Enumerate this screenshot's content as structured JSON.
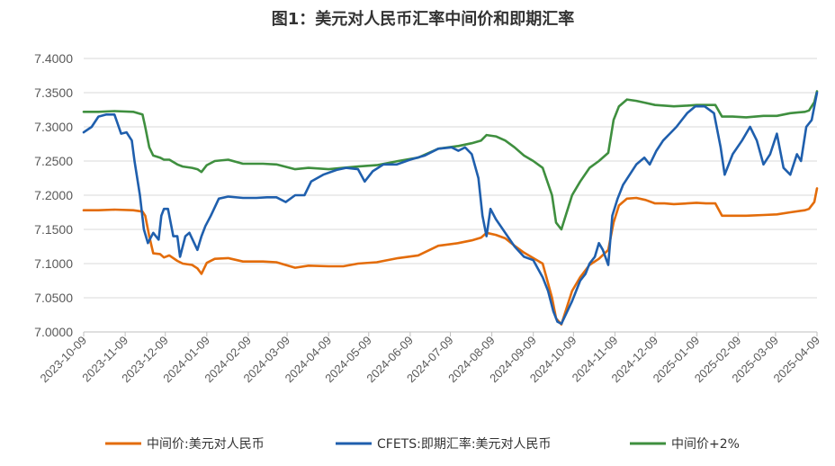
{
  "chart_data": {
    "type": "line",
    "title": "图1：美元对人民币汇率中间价和即期汇率",
    "xlabel": "",
    "ylabel": "",
    "ylim": [
      7.0,
      7.4
    ],
    "yticks": [
      "7.0000",
      "7.0500",
      "7.1000",
      "7.1500",
      "7.2000",
      "7.2500",
      "7.3000",
      "7.3500",
      "7.4000"
    ],
    "x_ticks": [
      "2023-10-09",
      "2023-11-09",
      "2023-12-09",
      "2024-01-09",
      "2024-02-09",
      "2024-03-09",
      "2024-04-09",
      "2024-05-09",
      "2024-06-09",
      "2024-07-09",
      "2024-08-09",
      "2024-09-09",
      "2024-10-09",
      "2024-11-09",
      "2024-12-09",
      "2025-01-09",
      "2025-02-09",
      "2025-03-09",
      "2025-04-09"
    ],
    "grid": "horizontal",
    "legend_position": "bottom",
    "series": [
      {
        "name": "中间价:美元对人民币",
        "color": "#e36c0a",
        "points": [
          [
            "2023-10-09",
            7.178
          ],
          [
            "2023-10-20",
            7.178
          ],
          [
            "2023-11-01",
            7.179
          ],
          [
            "2023-11-15",
            7.178
          ],
          [
            "2023-11-22",
            7.176
          ],
          [
            "2023-11-24",
            7.17
          ],
          [
            "2023-11-27",
            7.14
          ],
          [
            "2023-11-30",
            7.115
          ],
          [
            "2023-12-05",
            7.114
          ],
          [
            "2023-12-08",
            7.109
          ],
          [
            "2023-12-12",
            7.112
          ],
          [
            "2023-12-18",
            7.104
          ],
          [
            "2023-12-22",
            7.1
          ],
          [
            "2023-12-29",
            7.098
          ],
          [
            "2024-01-02",
            7.093
          ],
          [
            "2024-01-05",
            7.085
          ],
          [
            "2024-01-09",
            7.101
          ],
          [
            "2024-01-15",
            7.107
          ],
          [
            "2024-01-25",
            7.108
          ],
          [
            "2024-02-05",
            7.103
          ],
          [
            "2024-02-20",
            7.103
          ],
          [
            "2024-03-01",
            7.102
          ],
          [
            "2024-03-15",
            7.094
          ],
          [
            "2024-03-25",
            7.097
          ],
          [
            "2024-04-09",
            7.096
          ],
          [
            "2024-04-20",
            7.096
          ],
          [
            "2024-05-01",
            7.1
          ],
          [
            "2024-05-15",
            7.102
          ],
          [
            "2024-05-31",
            7.108
          ],
          [
            "2024-06-15",
            7.112
          ],
          [
            "2024-06-30",
            7.126
          ],
          [
            "2024-07-15",
            7.13
          ],
          [
            "2024-07-25",
            7.134
          ],
          [
            "2024-08-01",
            7.138
          ],
          [
            "2024-08-05",
            7.145
          ],
          [
            "2024-08-12",
            7.142
          ],
          [
            "2024-08-19",
            7.137
          ],
          [
            "2024-08-26",
            7.126
          ],
          [
            "2024-09-02",
            7.116
          ],
          [
            "2024-09-09",
            7.108
          ],
          [
            "2024-09-16",
            7.1
          ],
          [
            "2024-09-23",
            7.05
          ],
          [
            "2024-09-26",
            7.02
          ],
          [
            "2024-09-30",
            7.011
          ],
          [
            "2024-10-08",
            7.06
          ],
          [
            "2024-10-14",
            7.08
          ],
          [
            "2024-10-21",
            7.098
          ],
          [
            "2024-10-28",
            7.107
          ],
          [
            "2024-11-04",
            7.12
          ],
          [
            "2024-11-08",
            7.16
          ],
          [
            "2024-11-12",
            7.185
          ],
          [
            "2024-11-18",
            7.195
          ],
          [
            "2024-11-25",
            7.196
          ],
          [
            "2024-12-02",
            7.193
          ],
          [
            "2024-12-09",
            7.188
          ],
          [
            "2024-12-16",
            7.188
          ],
          [
            "2024-12-23",
            7.187
          ],
          [
            "2025-01-02",
            7.188
          ],
          [
            "2025-01-09",
            7.189
          ],
          [
            "2025-01-16",
            7.188
          ],
          [
            "2025-01-23",
            7.188
          ],
          [
            "2025-01-28",
            7.17
          ],
          [
            "2025-02-05",
            7.17
          ],
          [
            "2025-02-15",
            7.17
          ],
          [
            "2025-02-28",
            7.171
          ],
          [
            "2025-03-10",
            7.172
          ],
          [
            "2025-03-20",
            7.175
          ],
          [
            "2025-03-31",
            7.178
          ],
          [
            "2025-04-03",
            7.18
          ],
          [
            "2025-04-07",
            7.19
          ],
          [
            "2025-04-09",
            7.21
          ]
        ]
      },
      {
        "name": "CFETS:即期汇率:美元对人民币",
        "color": "#1f5fad",
        "points": [
          [
            "2023-10-09",
            7.292
          ],
          [
            "2023-10-15",
            7.3
          ],
          [
            "2023-10-20",
            7.315
          ],
          [
            "2023-10-26",
            7.318
          ],
          [
            "2023-11-01",
            7.318
          ],
          [
            "2023-11-06",
            7.29
          ],
          [
            "2023-11-10",
            7.292
          ],
          [
            "2023-11-14",
            7.28
          ],
          [
            "2023-11-16",
            7.25
          ],
          [
            "2023-11-20",
            7.2
          ],
          [
            "2023-11-23",
            7.15
          ],
          [
            "2023-11-26",
            7.13
          ],
          [
            "2023-11-30",
            7.145
          ],
          [
            "2023-12-04",
            7.135
          ],
          [
            "2023-12-06",
            7.17
          ],
          [
            "2023-12-08",
            7.18
          ],
          [
            "2023-12-11",
            7.18
          ],
          [
            "2023-12-15",
            7.14
          ],
          [
            "2023-12-18",
            7.14
          ],
          [
            "2023-12-20",
            7.11
          ],
          [
            "2023-12-24",
            7.14
          ],
          [
            "2023-12-27",
            7.145
          ],
          [
            "2024-01-02",
            7.12
          ],
          [
            "2024-01-05",
            7.14
          ],
          [
            "2024-01-08",
            7.155
          ],
          [
            "2024-01-12",
            7.17
          ],
          [
            "2024-01-18",
            7.195
          ],
          [
            "2024-01-25",
            7.198
          ],
          [
            "2024-02-05",
            7.196
          ],
          [
            "2024-02-15",
            7.196
          ],
          [
            "2024-02-23",
            7.197
          ],
          [
            "2024-03-01",
            7.197
          ],
          [
            "2024-03-08",
            7.19
          ],
          [
            "2024-03-15",
            7.2
          ],
          [
            "2024-03-22",
            7.2
          ],
          [
            "2024-03-27",
            7.22
          ],
          [
            "2024-04-05",
            7.23
          ],
          [
            "2024-04-15",
            7.237
          ],
          [
            "2024-04-22",
            7.24
          ],
          [
            "2024-05-01",
            7.238
          ],
          [
            "2024-05-06",
            7.22
          ],
          [
            "2024-05-12",
            7.235
          ],
          [
            "2024-05-20",
            7.245
          ],
          [
            "2024-05-30",
            7.245
          ],
          [
            "2024-06-09",
            7.252
          ],
          [
            "2024-06-20",
            7.258
          ],
          [
            "2024-06-30",
            7.268
          ],
          [
            "2024-07-10",
            7.27
          ],
          [
            "2024-07-15",
            7.265
          ],
          [
            "2024-07-20",
            7.27
          ],
          [
            "2024-07-25",
            7.26
          ],
          [
            "2024-07-30",
            7.225
          ],
          [
            "2024-08-02",
            7.17
          ],
          [
            "2024-08-05",
            7.14
          ],
          [
            "2024-08-08",
            7.18
          ],
          [
            "2024-08-12",
            7.165
          ],
          [
            "2024-08-19",
            7.145
          ],
          [
            "2024-08-26",
            7.125
          ],
          [
            "2024-09-02",
            7.11
          ],
          [
            "2024-09-09",
            7.105
          ],
          [
            "2024-09-16",
            7.08
          ],
          [
            "2024-09-20",
            7.06
          ],
          [
            "2024-09-24",
            7.03
          ],
          [
            "2024-09-27",
            7.015
          ],
          [
            "2024-09-30",
            7.012
          ],
          [
            "2024-10-08",
            7.045
          ],
          [
            "2024-10-14",
            7.075
          ],
          [
            "2024-10-18",
            7.085
          ],
          [
            "2024-10-21",
            7.1
          ],
          [
            "2024-10-25",
            7.11
          ],
          [
            "2024-10-28",
            7.13
          ],
          [
            "2024-10-31",
            7.12
          ],
          [
            "2024-11-04",
            7.098
          ],
          [
            "2024-11-07",
            7.17
          ],
          [
            "2024-11-11",
            7.195
          ],
          [
            "2024-11-15",
            7.215
          ],
          [
            "2024-11-20",
            7.23
          ],
          [
            "2024-11-25",
            7.245
          ],
          [
            "2024-12-01",
            7.255
          ],
          [
            "2024-12-05",
            7.245
          ],
          [
            "2024-12-10",
            7.265
          ],
          [
            "2024-12-15",
            7.28
          ],
          [
            "2024-12-20",
            7.29
          ],
          [
            "2024-12-25",
            7.3
          ],
          [
            "2025-01-02",
            7.32
          ],
          [
            "2025-01-08",
            7.33
          ],
          [
            "2025-01-15",
            7.33
          ],
          [
            "2025-01-22",
            7.32
          ],
          [
            "2025-01-27",
            7.27
          ],
          [
            "2025-01-30",
            7.23
          ],
          [
            "2025-02-05",
            7.26
          ],
          [
            "2025-02-12",
            7.28
          ],
          [
            "2025-02-18",
            7.3
          ],
          [
            "2025-02-23",
            7.28
          ],
          [
            "2025-02-28",
            7.245
          ],
          [
            "2025-03-05",
            7.26
          ],
          [
            "2025-03-10",
            7.29
          ],
          [
            "2025-03-15",
            7.24
          ],
          [
            "2025-03-20",
            7.23
          ],
          [
            "2025-03-25",
            7.26
          ],
          [
            "2025-03-28",
            7.25
          ],
          [
            "2025-04-01",
            7.3
          ],
          [
            "2025-04-05",
            7.31
          ],
          [
            "2025-04-09",
            7.35
          ]
        ]
      },
      {
        "name": "中间价+2%",
        "color": "#3f8f3f",
        "points": [
          [
            "2023-10-09",
            7.322
          ],
          [
            "2023-10-20",
            7.322
          ],
          [
            "2023-11-01",
            7.323
          ],
          [
            "2023-11-15",
            7.322
          ],
          [
            "2023-11-22",
            7.318
          ],
          [
            "2023-11-24",
            7.3
          ],
          [
            "2023-11-27",
            7.27
          ],
          [
            "2023-11-30",
            7.258
          ],
          [
            "2023-12-05",
            7.255
          ],
          [
            "2023-12-08",
            7.252
          ],
          [
            "2023-12-12",
            7.252
          ],
          [
            "2023-12-18",
            7.245
          ],
          [
            "2023-12-22",
            7.242
          ],
          [
            "2023-12-29",
            7.24
          ],
          [
            "2024-01-02",
            7.238
          ],
          [
            "2024-01-05",
            7.234
          ],
          [
            "2024-01-09",
            7.244
          ],
          [
            "2024-01-15",
            7.25
          ],
          [
            "2024-01-25",
            7.252
          ],
          [
            "2024-02-05",
            7.246
          ],
          [
            "2024-02-20",
            7.246
          ],
          [
            "2024-03-01",
            7.245
          ],
          [
            "2024-03-15",
            7.238
          ],
          [
            "2024-03-25",
            7.24
          ],
          [
            "2024-04-09",
            7.238
          ],
          [
            "2024-04-20",
            7.24
          ],
          [
            "2024-05-01",
            7.242
          ],
          [
            "2024-05-15",
            7.244
          ],
          [
            "2024-05-31",
            7.25
          ],
          [
            "2024-06-15",
            7.255
          ],
          [
            "2024-06-30",
            7.268
          ],
          [
            "2024-07-15",
            7.272
          ],
          [
            "2024-07-25",
            7.276
          ],
          [
            "2024-08-01",
            7.28
          ],
          [
            "2024-08-05",
            7.288
          ],
          [
            "2024-08-12",
            7.286
          ],
          [
            "2024-08-19",
            7.28
          ],
          [
            "2024-08-26",
            7.27
          ],
          [
            "2024-09-02",
            7.258
          ],
          [
            "2024-09-09",
            7.25
          ],
          [
            "2024-09-16",
            7.24
          ],
          [
            "2024-09-23",
            7.2
          ],
          [
            "2024-09-26",
            7.16
          ],
          [
            "2024-09-30",
            7.15
          ],
          [
            "2024-10-08",
            7.2
          ],
          [
            "2024-10-14",
            7.22
          ],
          [
            "2024-10-21",
            7.24
          ],
          [
            "2024-10-28",
            7.25
          ],
          [
            "2024-11-04",
            7.262
          ],
          [
            "2024-11-08",
            7.31
          ],
          [
            "2024-11-12",
            7.33
          ],
          [
            "2024-11-18",
            7.34
          ],
          [
            "2024-11-25",
            7.338
          ],
          [
            "2024-12-02",
            7.335
          ],
          [
            "2024-12-09",
            7.332
          ],
          [
            "2024-12-16",
            7.331
          ],
          [
            "2024-12-23",
            7.33
          ],
          [
            "2025-01-02",
            7.331
          ],
          [
            "2025-01-09",
            7.332
          ],
          [
            "2025-01-16",
            7.332
          ],
          [
            "2025-01-23",
            7.332
          ],
          [
            "2025-01-28",
            7.315
          ],
          [
            "2025-02-05",
            7.315
          ],
          [
            "2025-02-15",
            7.314
          ],
          [
            "2025-02-28",
            7.316
          ],
          [
            "2025-03-10",
            7.316
          ],
          [
            "2025-03-20",
            7.32
          ],
          [
            "2025-03-31",
            7.322
          ],
          [
            "2025-04-03",
            7.324
          ],
          [
            "2025-04-07",
            7.336
          ],
          [
            "2025-04-09",
            7.352
          ]
        ]
      }
    ]
  }
}
